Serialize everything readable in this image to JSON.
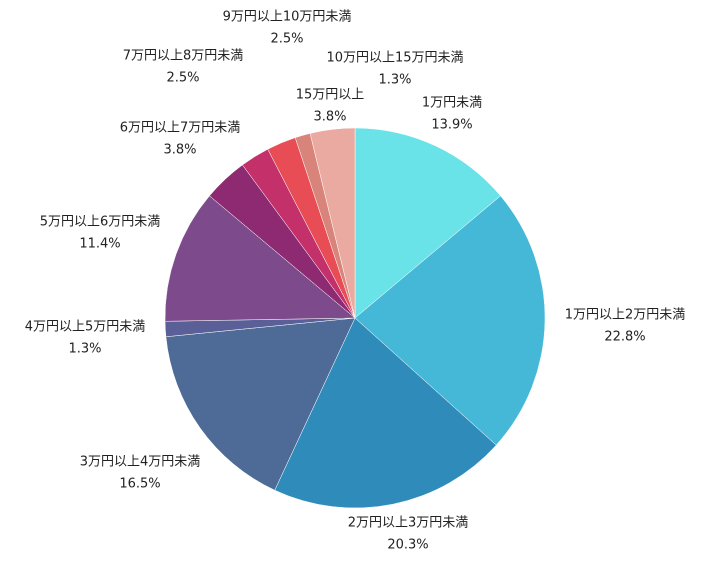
{
  "chart_data": {
    "type": "pie",
    "categories": [
      "1万円未満",
      "1万円以上2万円未満",
      "2万円以上3万円未満",
      "3万円以上4万円未満",
      "4万円以上5万円未満",
      "5万円以上6万円未満",
      "6万円以上7万円未満",
      "7万円以上8万円未満",
      "9万円以上10万円未満",
      "10万円以上15万円未満",
      "15万円以上"
    ],
    "values": [
      13.9,
      22.8,
      20.3,
      16.5,
      1.3,
      11.4,
      3.8,
      2.5,
      2.5,
      1.3,
      3.8
    ],
    "value_labels": [
      "13.9%",
      "22.8%",
      "20.3%",
      "16.5%",
      "1.3%",
      "11.4%",
      "3.8%",
      "2.5%",
      "2.5%",
      "1.3%",
      "3.8%"
    ],
    "colors": [
      "#6ae3e8",
      "#45b8d8",
      "#2e8bba",
      "#4d6b96",
      "#5a5f98",
      "#7d4a8c",
      "#8e2a72",
      "#c3306a",
      "#e84c55",
      "#d9847a",
      "#eaaaa2"
    ]
  }
}
